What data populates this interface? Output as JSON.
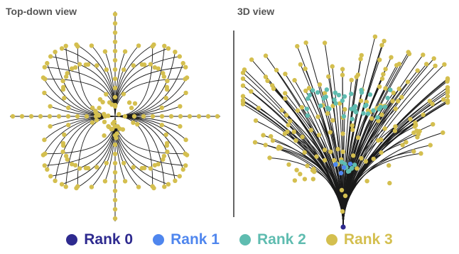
{
  "panels": {
    "left_title": "Top-down view",
    "right_title": "3D view"
  },
  "colors": {
    "edge": "#1a1a1a",
    "rank0": "#2e2a8f",
    "rank1": "#4f86ee",
    "rank2": "#5fbcb0",
    "rank3": "#d4bf4f"
  },
  "legend": [
    {
      "label": "Rank 0",
      "color": "#2e2a8f"
    },
    {
      "label": "Rank 1",
      "color": "#4f86ee"
    },
    {
      "label": "Rank 2",
      "color": "#5fbcb0"
    },
    {
      "label": "Rank 3",
      "color": "#d4bf4f"
    }
  ]
}
